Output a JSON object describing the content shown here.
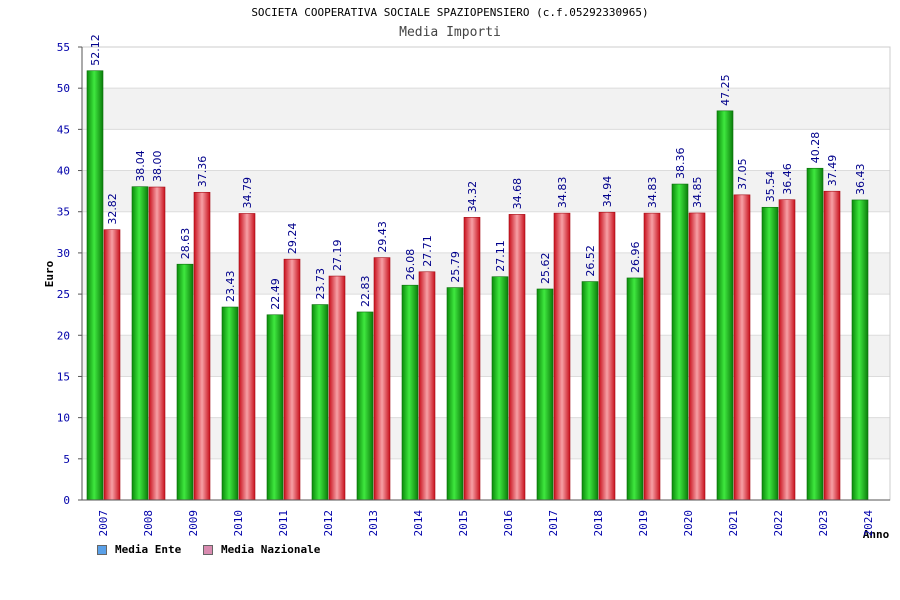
{
  "chart_data": {
    "type": "bar",
    "title": "SOCIETA COOPERATIVA SOCIALE SPAZIOPENSIERO (c.f.05292330965)",
    "subtitle": "Media Importi",
    "ylabel": "Euro",
    "xlabel": "Anno",
    "ylim": [
      0,
      55
    ],
    "yticks": [
      0,
      5,
      10,
      15,
      20,
      25,
      30,
      35,
      40,
      45,
      50,
      55
    ],
    "categories": [
      "2007",
      "2008",
      "2009",
      "2010",
      "2011",
      "2012",
      "2013",
      "2014",
      "2015",
      "2016",
      "2017",
      "2018",
      "2019",
      "2020",
      "2021",
      "2022",
      "2023",
      "2024"
    ],
    "series": [
      {
        "name": "Media Ente",
        "color": "#1fb61f",
        "values": [
          52.12,
          38.04,
          28.63,
          23.43,
          22.49,
          23.73,
          22.83,
          26.08,
          25.79,
          27.11,
          25.62,
          26.52,
          26.96,
          38.36,
          47.25,
          35.54,
          40.28,
          36.43
        ],
        "labels": [
          "52.12",
          "38.04",
          "28.63",
          "23.43",
          "22.49",
          "23.73",
          "22.83",
          "26.08",
          "25.79",
          "27.11",
          "25.62",
          "26.52",
          "26.96",
          "38.36",
          "47.25",
          "35.54",
          "40.28",
          "36.43"
        ]
      },
      {
        "name": "Media Nazionale",
        "color": "#e8323c",
        "values": [
          32.82,
          38.0,
          37.36,
          34.79,
          29.24,
          27.19,
          29.43,
          27.71,
          34.32,
          34.68,
          34.83,
          34.94,
          34.83,
          34.85,
          37.05,
          36.46,
          37.49,
          null
        ],
        "labels": [
          "32.82",
          "38.00",
          "37.36",
          "34.79",
          "29.24",
          "27.19",
          "29.43",
          "27.71",
          "34.32",
          "34.68",
          "34.83",
          "34.94",
          "34.83",
          "34.85",
          "37.05",
          "36.46",
          "37.49",
          ""
        ]
      }
    ],
    "legend": [
      {
        "label": "Media Ente",
        "color": "#5aa0e8"
      },
      {
        "label": "Media Nazionale",
        "color": "#d98bb0"
      }
    ],
    "grid": true,
    "legend_position": "bottom-left"
  }
}
